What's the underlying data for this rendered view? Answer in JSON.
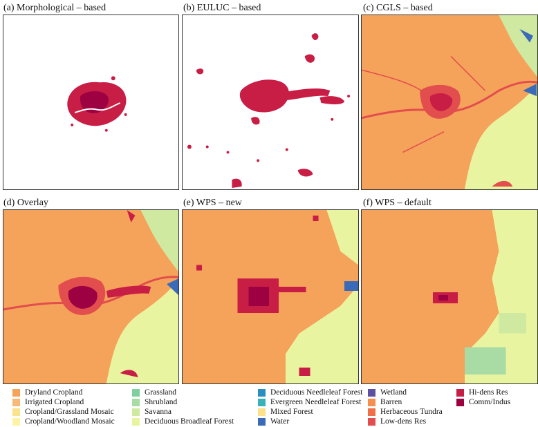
{
  "colors": {
    "dryland_cropland": "#f5a25a",
    "irrigated_cropland": "#f8b877",
    "cropland_grassland_mosaic": "#fbe38e",
    "cropland_woodland_mosaic": "#fdf3a6",
    "grassland": "#7fcf9f",
    "shrubland": "#a8dca4",
    "savanna": "#cfeaa0",
    "deciduous_broadleaf_forest": "#e8f4a0",
    "deciduous_needleleaf_forest": "#2a8fbf",
    "evergreen_needleleaf_forest": "#3ab0b8",
    "mixed_forest": "#fde08a",
    "water": "#3b6bb8",
    "wetland": "#5e4fa2",
    "barren": "#f68f4e",
    "herbaceous_tundra": "#ef7048",
    "low_dens_res": "#e24d4d",
    "hi_dens_res": "#c81e46",
    "comm_indus": "#9e0142"
  },
  "panels": [
    {
      "id": "a",
      "title": "(a) Morphological – based"
    },
    {
      "id": "b",
      "title": "(b) EULUC – based"
    },
    {
      "id": "c",
      "title": "(c) CGLS – based"
    },
    {
      "id": "d",
      "title": "(d) Overlay"
    },
    {
      "id": "e",
      "title": "(e) WPS – new"
    },
    {
      "id": "f",
      "title": "(f) WPS – default"
    }
  ],
  "legend": {
    "columns": [
      [
        {
          "label": "Dryland Cropland",
          "color": "#f5a25a"
        },
        {
          "label": "Irrigated Cropland",
          "color": "#f8b877"
        },
        {
          "label": "Cropland/Grassland Mosaic",
          "color": "#fbe38e"
        },
        {
          "label": "Cropland/Woodland Mosaic",
          "color": "#fdf3a6"
        }
      ],
      [
        {
          "label": "Grassland",
          "color": "#7fcf9f"
        },
        {
          "label": "Shrubland",
          "color": "#a8dca4"
        },
        {
          "label": "Savanna",
          "color": "#cfeaa0"
        },
        {
          "label": "Deciduous Broadleaf Forest",
          "color": "#e8f4a0"
        }
      ],
      [
        {
          "label": "Deciduous Needleleaf Forest",
          "color": "#2a8fbf"
        },
        {
          "label": "Evergreen Needleleaf Forest",
          "color": "#3ab0b8"
        },
        {
          "label": "Mixed Forest",
          "color": "#fde08a"
        },
        {
          "label": "Water",
          "color": "#3b6bb8"
        }
      ],
      [
        {
          "label": "Wetland",
          "color": "#5e4fa2"
        },
        {
          "label": "Barren",
          "color": "#f68f4e"
        },
        {
          "label": "Herbaceous Tundra",
          "color": "#ef7048"
        },
        {
          "label": "Low-dens Res",
          "color": "#e24d4d"
        }
      ],
      [
        {
          "label": "Hi-dens Res",
          "color": "#c81e46"
        },
        {
          "label": "Comm/Indus",
          "color": "#9e0142"
        }
      ]
    ]
  }
}
